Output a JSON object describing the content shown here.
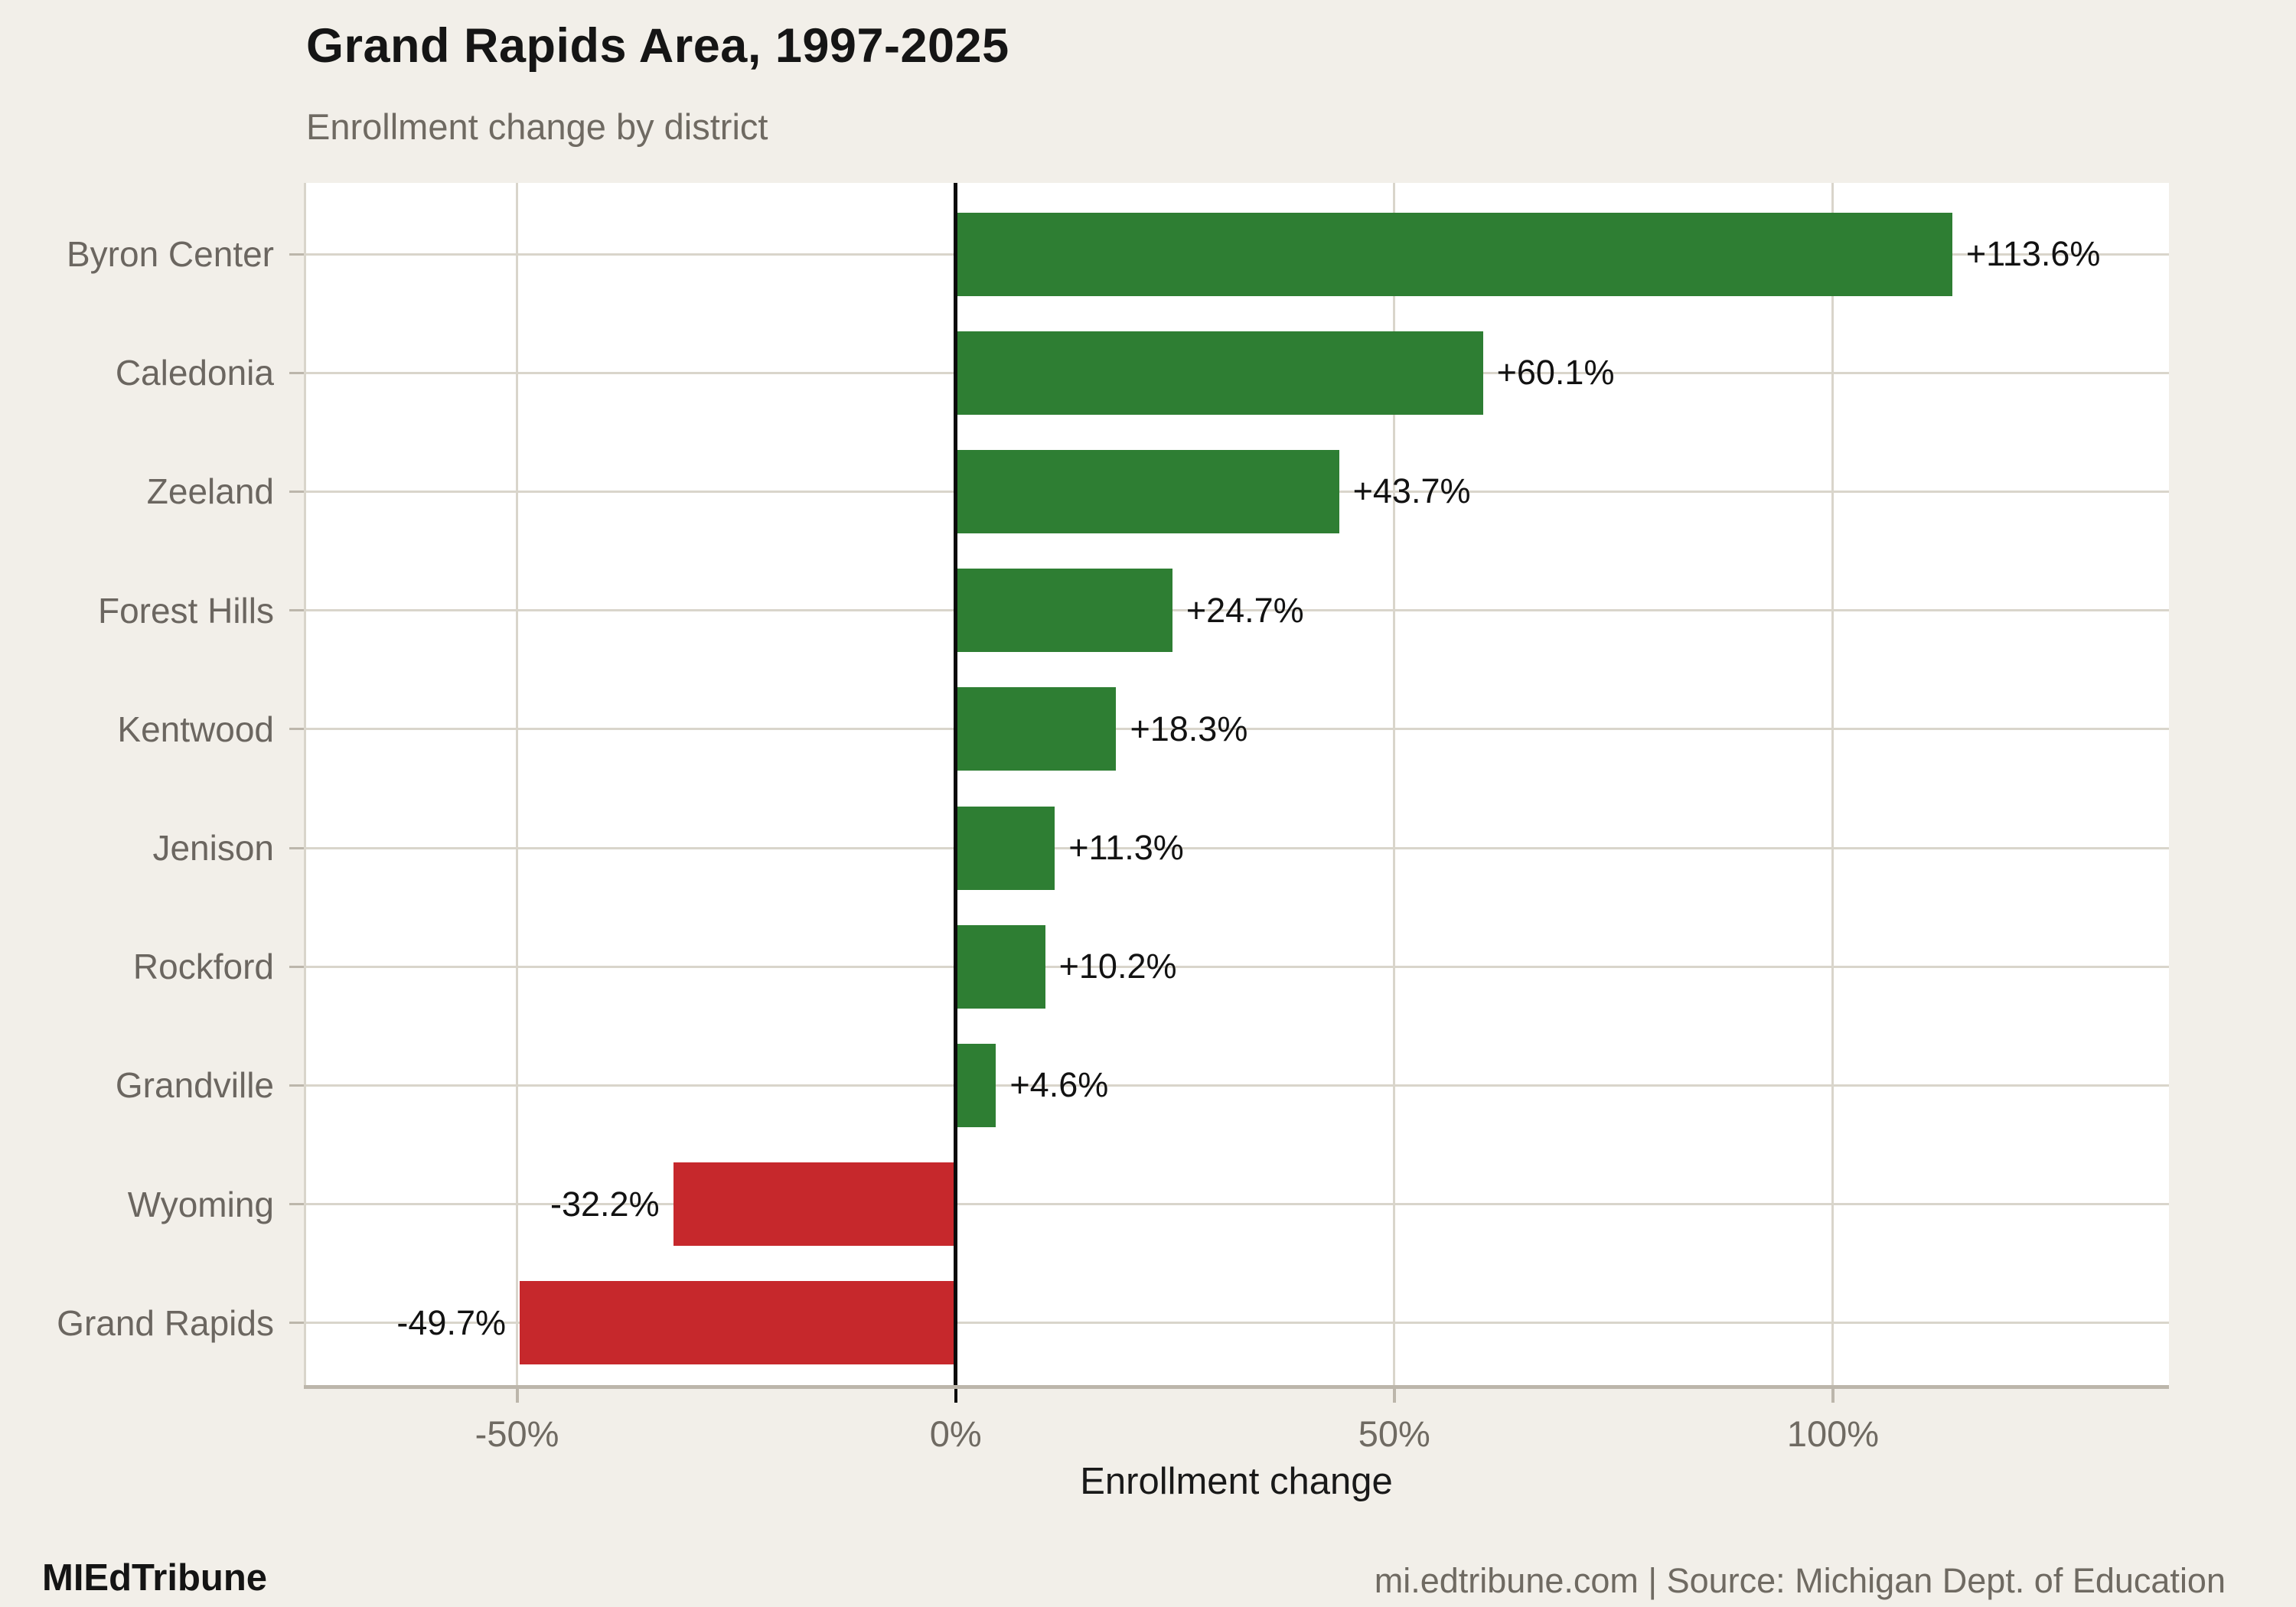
{
  "title": "Grand Rapids Area, 1997-2025",
  "subtitle": "Enrollment change by district",
  "footer": {
    "brand": "MIEdTribune",
    "source": "mi.edtribune.com | Source: Michigan Dept. of Education"
  },
  "colors": {
    "background": "#f2efe9",
    "panel": "#ffffff",
    "grid": "#d9d5cb",
    "axis": "#bcb6ab",
    "zero_line": "#0b0b0b",
    "positive_bar": "#2e7e33",
    "negative_bar": "#c6282c",
    "muted_text": "#6f6a62",
    "text": "#141414"
  },
  "chart_data": {
    "type": "bar",
    "orientation": "horizontal",
    "title": "Grand Rapids Area, 1997-2025",
    "subtitle": "Enrollment change by district",
    "xlabel": "Enrollment change",
    "ylabel": "",
    "categories": [
      "Byron Center",
      "Caledonia",
      "Zeeland",
      "Forest Hills",
      "Kentwood",
      "Jenison",
      "Rockford",
      "Grandville",
      "Wyoming",
      "Grand Rapids"
    ],
    "values": [
      113.6,
      60.1,
      43.7,
      24.7,
      18.3,
      11.3,
      10.2,
      4.6,
      -32.2,
      -49.7
    ],
    "value_labels": [
      "+113.6%",
      "+60.1%",
      "+43.7%",
      "+24.7%",
      "+18.3%",
      "+11.3%",
      "+10.2%",
      "+4.6%",
      "-32.2%",
      "-49.7%"
    ],
    "xlim": [
      -74.3,
      138.3
    ],
    "x_ticks": [
      {
        "value": -50,
        "label": "-50%"
      },
      {
        "value": 0,
        "label": "0%"
      },
      {
        "value": 50,
        "label": "50%"
      },
      {
        "value": 100,
        "label": "100%"
      }
    ],
    "grid": true,
    "legend": false,
    "value_sign_colors": true
  }
}
